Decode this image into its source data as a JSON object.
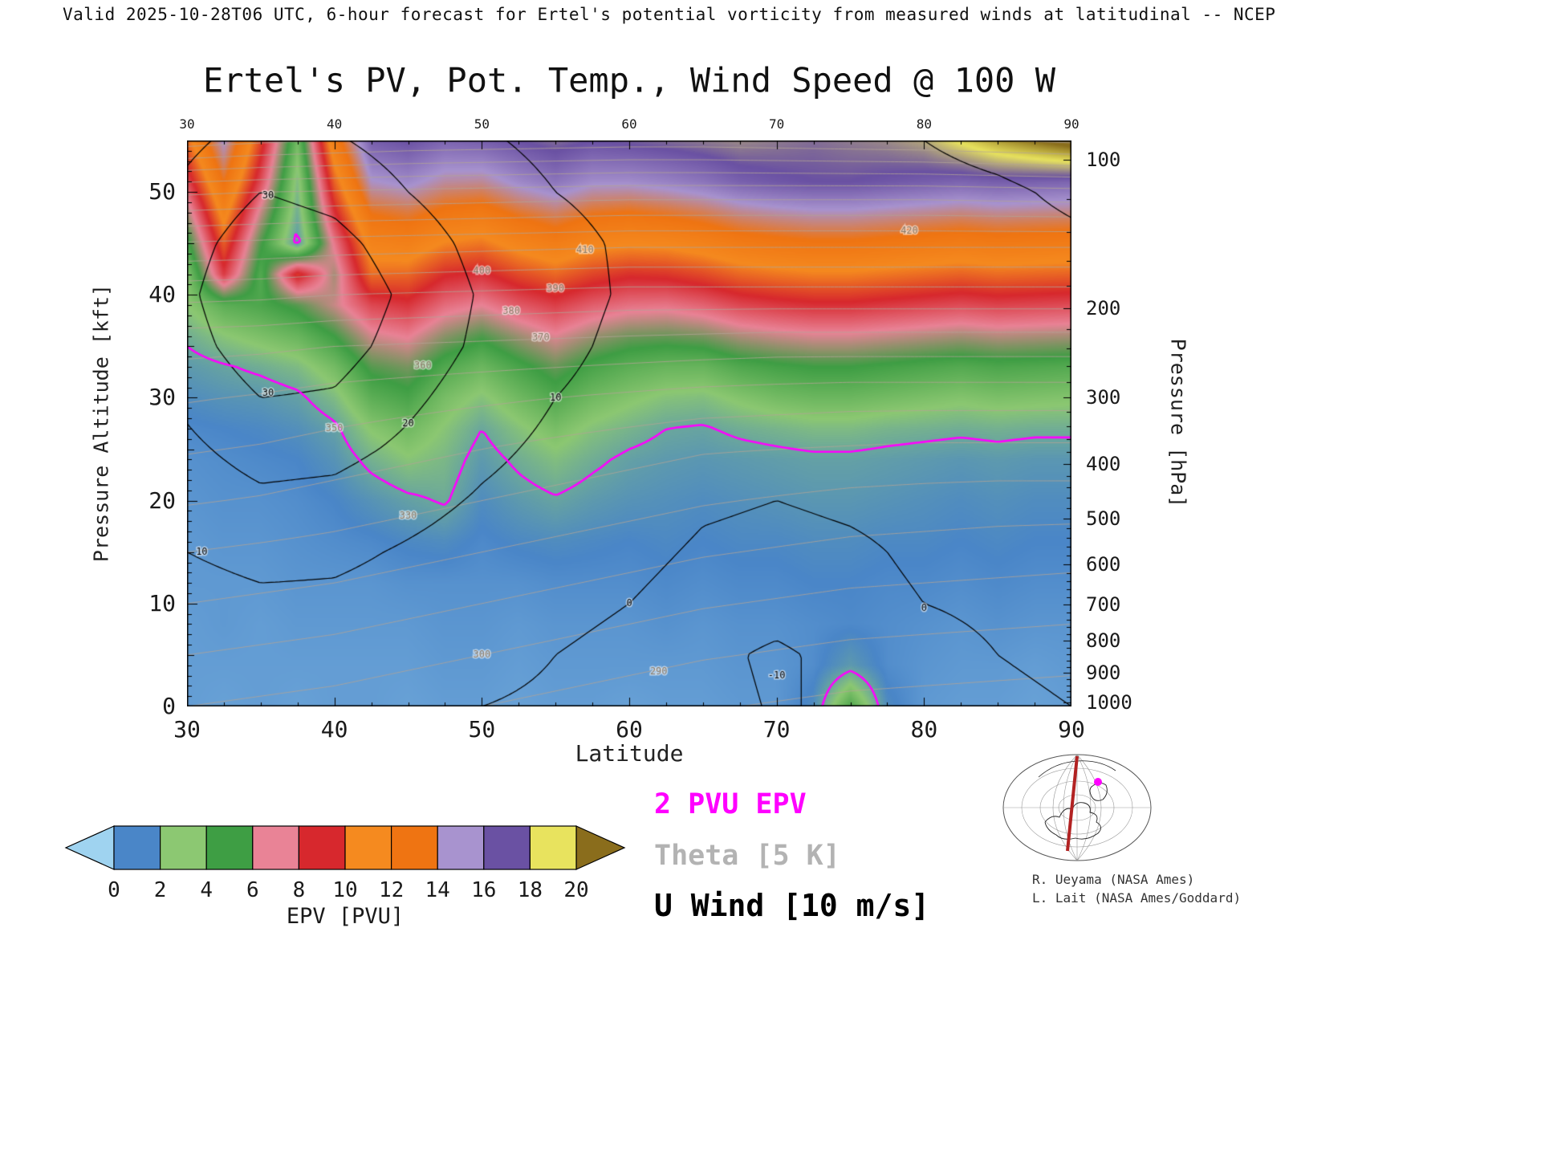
{
  "header": {
    "valid_line": "Valid 2025-10-28T06 UTC, 6-hour forecast for Ertel's potential vorticity from measured winds at latitudinal -- NCEP"
  },
  "title": "Ertel's PV, Pot. Temp., Wind Speed @ 100 W",
  "axes": {
    "x": {
      "label": "Latitude",
      "ticks": [
        30,
        40,
        50,
        60,
        70,
        80,
        90
      ],
      "lim": [
        30,
        90
      ]
    },
    "y_left": {
      "label": "Pressure Altitude [kft]",
      "ticks": [
        0,
        10,
        20,
        30,
        40,
        50
      ],
      "lim": [
        0,
        55
      ]
    },
    "y_right": {
      "label": "Pressure [hPa]",
      "ticks": [
        {
          "p": 100,
          "kft": 53.1
        },
        {
          "p": 200,
          "kft": 38.66
        },
        {
          "p": 300,
          "kft": 30.07
        },
        {
          "p": 400,
          "kft": 23.57
        },
        {
          "p": 500,
          "kft": 18.29
        },
        {
          "p": 600,
          "kft": 13.8
        },
        {
          "p": 700,
          "kft": 9.88
        },
        {
          "p": 800,
          "kft": 6.39
        },
        {
          "p": 900,
          "kft": 3.24
        },
        {
          "p": 1000,
          "kft": 0.36
        }
      ]
    }
  },
  "legend": {
    "pv": {
      "text": "2 PVU EPV",
      "color": "#ff00ff"
    },
    "theta": {
      "text": "Theta [5 K]",
      "color": "#b3b3b3"
    },
    "wind": {
      "text": "U Wind [10 m/s]",
      "color": "#000000"
    }
  },
  "credits": [
    "R. Ueyama (NASA Ames)",
    "L. Lait (NASA Ames/Goddard)"
  ],
  "chart_data": {
    "type": "heatmap",
    "title": "Ertel's PV, Pot. Temp., Wind Speed @ 100 W",
    "xlabel": "Latitude",
    "ylabel_left": "Pressure Altitude [kft]",
    "ylabel_right": "Pressure [hPa]",
    "xlim": [
      30,
      90
    ],
    "ylim": [
      0,
      55
    ],
    "colorbar": {
      "label": "EPV [PVU]",
      "tick_labels": [
        0,
        2,
        4,
        6,
        8,
        10,
        12,
        14,
        16,
        18,
        20
      ],
      "under_color": "#9fd3f0",
      "over_color": "#8a6d1c",
      "segment_colors": [
        "#4a86c8",
        "#8cc872",
        "#3e9e44",
        "#e98396",
        "#d7282d",
        "#f58a1f",
        "#ef7412",
        "#a893cf",
        "#6a51a3",
        "#e8e35e"
      ]
    },
    "colormap": [
      [
        -1,
        "#9fd3f0"
      ],
      [
        1,
        "#4a86c8"
      ],
      [
        3,
        "#8cc872"
      ],
      [
        5,
        "#3e9e44"
      ],
      [
        7,
        "#e98396"
      ],
      [
        9,
        "#d7282d"
      ],
      [
        11,
        "#f58a1f"
      ],
      [
        13,
        "#ef7412"
      ],
      [
        15,
        "#a893cf"
      ],
      [
        17,
        "#6a51a3"
      ],
      [
        19,
        "#e8e35e"
      ],
      [
        21,
        "#8a6d1c"
      ]
    ],
    "pv": {
      "units": "PVU",
      "highlight_level": 2,
      "highlight_color": "#ff00ff",
      "lats": [
        30,
        32.5,
        35,
        37.5,
        40,
        42.5,
        45,
        47.5,
        50,
        52.5,
        55,
        57.5,
        60,
        62.5,
        65,
        67.5,
        70,
        72.5,
        75,
        77.5,
        80,
        82.5,
        85,
        87.5,
        90
      ],
      "alts": [
        0,
        4,
        8,
        12,
        16,
        20,
        24,
        27,
        30,
        33,
        36,
        39,
        42,
        45,
        48,
        51,
        55
      ],
      "values": [
        [
          0.4,
          0.3,
          0.4,
          0.3,
          0.4,
          0.4,
          0.3,
          0.4,
          0.4,
          0.3,
          0.4,
          0.4,
          0.3,
          0.4,
          0.4,
          0.5,
          0.5,
          1.2,
          4.6,
          1.2,
          0.5,
          0.4,
          0.4,
          0.3,
          0.4
        ],
        [
          0.4,
          0.4,
          0.4,
          0.4,
          0.4,
          0.4,
          0.4,
          0.5,
          0.5,
          0.4,
          0.5,
          0.5,
          0.5,
          0.5,
          0.5,
          0.6,
          0.6,
          0.8,
          1.6,
          0.8,
          0.6,
          0.5,
          0.5,
          0.4,
          0.5
        ],
        [
          0.4,
          0.5,
          0.4,
          0.5,
          0.5,
          0.5,
          0.5,
          0.6,
          0.6,
          0.5,
          0.6,
          0.6,
          0.6,
          0.7,
          0.6,
          0.7,
          0.7,
          0.8,
          0.9,
          0.8,
          0.7,
          0.6,
          0.7,
          0.6,
          0.6
        ],
        [
          0.5,
          0.5,
          0.5,
          0.6,
          0.6,
          0.6,
          0.7,
          0.7,
          0.7,
          0.7,
          0.8,
          0.8,
          0.8,
          0.9,
          0.8,
          0.9,
          0.9,
          1.0,
          1.0,
          0.9,
          0.9,
          0.8,
          0.9,
          0.8,
          0.8
        ],
        [
          0.5,
          0.6,
          0.6,
          0.7,
          0.8,
          0.9,
          1.1,
          1.2,
          0.9,
          1.1,
          1.2,
          1.1,
          1.0,
          1.1,
          1.0,
          1.1,
          1.1,
          1.2,
          1.2,
          1.1,
          1.1,
          1.0,
          1.1,
          1.0,
          1.0
        ],
        [
          0.6,
          0.7,
          0.7,
          0.8,
          1.0,
          1.4,
          1.8,
          2.1,
          1.2,
          1.6,
          1.9,
          1.6,
          1.4,
          1.3,
          1.2,
          1.3,
          1.4,
          1.5,
          1.5,
          1.4,
          1.3,
          1.2,
          1.3,
          1.2,
          1.2
        ],
        [
          0.7,
          0.8,
          0.9,
          1.0,
          1.4,
          2.3,
          2.9,
          2.5,
          1.6,
          2.2,
          2.7,
          2.2,
          1.8,
          1.6,
          1.5,
          1.6,
          1.7,
          1.8,
          1.8,
          1.7,
          1.6,
          1.5,
          1.6,
          1.5,
          1.5
        ],
        [
          0.9,
          1.0,
          1.1,
          1.3,
          1.8,
          3.1,
          3.7,
          2.9,
          2.0,
          2.8,
          3.5,
          2.8,
          2.4,
          2.0,
          1.9,
          2.2,
          2.4,
          2.6,
          2.6,
          2.4,
          2.3,
          2.2,
          2.3,
          2.2,
          2.2
        ],
        [
          1.2,
          1.4,
          1.5,
          1.8,
          2.6,
          4.2,
          4.7,
          3.5,
          2.8,
          3.7,
          4.5,
          3.7,
          3.2,
          2.8,
          2.7,
          3.2,
          3.6,
          3.8,
          3.8,
          3.6,
          3.4,
          3.2,
          3.4,
          3.3,
          3.2
        ],
        [
          1.6,
          1.9,
          2.2,
          2.6,
          3.6,
          5.3,
          5.7,
          4.5,
          3.8,
          4.7,
          5.5,
          4.7,
          4.2,
          3.9,
          3.9,
          4.5,
          4.8,
          5.0,
          5.0,
          4.8,
          4.6,
          4.4,
          4.6,
          4.5,
          4.4
        ],
        [
          2.2,
          2.9,
          3.4,
          3.9,
          5.0,
          6.7,
          7.1,
          5.9,
          5.2,
          6.1,
          6.9,
          6.1,
          5.6,
          5.5,
          5.7,
          6.3,
          6.6,
          6.8,
          6.8,
          6.6,
          6.4,
          6.2,
          6.4,
          6.3,
          6.2
        ],
        [
          3.0,
          4.2,
          4.6,
          5.3,
          6.6,
          8.3,
          8.7,
          7.5,
          7.0,
          7.9,
          8.5,
          7.8,
          7.4,
          7.3,
          7.7,
          8.3,
          8.6,
          8.8,
          8.8,
          8.6,
          8.4,
          8.2,
          8.4,
          8.3,
          8.2
        ],
        [
          3.2,
          8.6,
          4.4,
          9.4,
          6.2,
          10.4,
          10.3,
          9.1,
          8.8,
          9.7,
          10.3,
          9.6,
          9.2,
          9.3,
          9.7,
          10.3,
          10.6,
          10.8,
          10.8,
          10.6,
          10.4,
          10.2,
          10.4,
          10.3,
          10.2
        ],
        [
          4.6,
          10.1,
          5.2,
          1.6,
          7.2,
          11.6,
          11.9,
          10.9,
          10.6,
          11.5,
          12.1,
          11.4,
          11.2,
          11.3,
          11.7,
          12.3,
          12.6,
          12.8,
          12.8,
          12.6,
          12.4,
          12.2,
          12.4,
          12.3,
          12.2
        ],
        [
          6.2,
          11.6,
          6.6,
          2.2,
          8.8,
          13.1,
          13.5,
          12.7,
          12.4,
          13.3,
          13.9,
          13.2,
          13.0,
          13.3,
          13.7,
          14.3,
          14.6,
          14.8,
          14.8,
          14.6,
          14.4,
          14.2,
          14.4,
          14.3,
          14.2
        ],
        [
          8.2,
          13.1,
          8.2,
          2.6,
          10.2,
          14.9,
          15.3,
          14.5,
          14.4,
          15.3,
          15.9,
          15.2,
          15.2,
          15.5,
          15.9,
          16.5,
          16.8,
          17.0,
          17.0,
          16.8,
          16.6,
          16.4,
          16.6,
          16.5,
          16.4
        ],
        [
          10.4,
          15.1,
          9.6,
          3.6,
          12.2,
          16.6,
          17.0,
          16.4,
          16.6,
          17.0,
          17.4,
          17.0,
          17.2,
          17.4,
          17.6,
          17.8,
          17.6,
          17.4,
          17.6,
          17.8,
          18.2,
          19.2,
          20.2,
          21.0,
          21.8
        ]
      ]
    },
    "theta": {
      "units": "K",
      "contour_interval": 10,
      "levels": [
        280,
        290,
        300,
        310,
        320,
        330,
        340,
        350,
        360,
        370,
        380,
        390,
        400,
        410,
        420,
        430,
        440,
        450,
        460,
        470,
        480,
        490
      ],
      "color": "#b3a396",
      "lats": [
        30,
        35,
        40,
        45,
        50,
        55,
        60,
        65,
        70,
        75,
        80,
        85,
        90
      ],
      "alts": [
        0,
        5,
        10,
        15,
        20,
        25,
        30,
        35,
        40,
        45,
        50,
        55
      ],
      "values": [
        [
          300,
          298,
          296,
          293,
          290,
          287,
          284,
          281,
          279,
          277,
          276,
          275,
          274
        ],
        [
          310,
          308,
          306,
          303,
          300,
          297,
          294,
          291,
          289,
          287,
          286,
          285,
          284
        ],
        [
          320,
          318,
          316,
          313,
          310,
          307,
          304,
          301,
          299,
          297,
          296,
          295,
          294
        ],
        [
          330,
          328,
          326,
          323,
          320,
          317,
          314,
          311,
          309,
          307,
          306,
          305,
          304
        ],
        [
          341,
          339,
          336,
          333,
          330,
          327,
          324,
          321,
          319,
          317,
          316,
          315,
          315
        ],
        [
          351,
          349,
          346,
          343,
          340,
          337,
          334,
          331,
          330,
          329,
          328,
          328,
          328
        ],
        [
          361,
          359,
          356,
          354,
          352,
          350,
          348,
          346,
          345,
          344,
          344,
          344,
          344
        ],
        [
          373,
          372,
          370,
          369,
          368,
          367,
          366,
          365,
          364,
          364,
          364,
          364,
          364
        ],
        [
          393,
          392,
          390,
          389,
          388,
          387,
          386,
          386,
          386,
          386,
          386,
          386,
          386
        ],
        [
          419,
          418,
          416,
          415,
          414,
          413,
          412,
          412,
          412,
          412,
          412,
          412,
          412
        ],
        [
          452,
          450,
          449,
          448,
          447,
          446,
          445,
          445,
          445,
          445,
          445,
          446,
          447
        ],
        [
          495,
          492,
          490,
          488,
          487,
          486,
          485,
          485,
          486,
          487,
          488,
          490,
          492
        ]
      ]
    },
    "u_wind": {
      "units": "m/s",
      "contour_interval": 10,
      "levels": [
        -10,
        0,
        10,
        20,
        30,
        40
      ],
      "color": "#000000",
      "lats": [
        30,
        35,
        40,
        45,
        50,
        55,
        60,
        65,
        70,
        75,
        80,
        85,
        90
      ],
      "alts": [
        0,
        5,
        10,
        15,
        20,
        25,
        30,
        35,
        40,
        45,
        50,
        55
      ],
      "values": [
        [
          2,
          3,
          2,
          1,
          0,
          -1,
          -3,
          -6,
          -11,
          -8,
          -3,
          -1,
          0
        ],
        [
          4,
          5,
          4,
          3,
          2,
          0,
          -2,
          -7,
          -12,
          -6,
          -2,
          0,
          1
        ],
        [
          6,
          8,
          8,
          6,
          4,
          2,
          0,
          -3,
          -5,
          -2,
          0,
          1,
          2
        ],
        [
          10,
          13,
          12,
          9,
          6,
          4,
          2,
          -1,
          -2,
          -1,
          1,
          2,
          3
        ],
        [
          14,
          18,
          17,
          13,
          9,
          6,
          4,
          1,
          0,
          1,
          2,
          3,
          4
        ],
        [
          18,
          24,
          23,
          18,
          12,
          8,
          5,
          2,
          1,
          2,
          3,
          4,
          5
        ],
        [
          22,
          30,
          29,
          22,
          15,
          10,
          7,
          4,
          2,
          3,
          4,
          5,
          6
        ],
        [
          26,
          36,
          34,
          26,
          18,
          12,
          8,
          5,
          3,
          4,
          5,
          6,
          7
        ],
        [
          28,
          40,
          37,
          28,
          19,
          13,
          9,
          6,
          4,
          5,
          6,
          7,
          8
        ],
        [
          26,
          36,
          33,
          25,
          17,
          12,
          9,
          6,
          5,
          6,
          7,
          8,
          9
        ],
        [
          22,
          30,
          27,
          20,
          14,
          10,
          8,
          6,
          6,
          7,
          8,
          9,
          11
        ],
        [
          18,
          24,
          21,
          16,
          11,
          8,
          7,
          6,
          7,
          8,
          10,
          12,
          14
        ]
      ]
    },
    "contour_labels": [
      {
        "text": "290",
        "lat": 62,
        "alt": 3.4,
        "kind": "theta"
      },
      {
        "text": "300",
        "lat": 50,
        "alt": 5.0,
        "kind": "theta"
      },
      {
        "text": "330",
        "lat": 45,
        "alt": 18.5,
        "kind": "theta"
      },
      {
        "text": "350",
        "lat": 40,
        "alt": 27.0,
        "kind": "theta"
      },
      {
        "text": "360",
        "lat": 46,
        "alt": 33.1,
        "kind": "theta"
      },
      {
        "text": "370",
        "lat": 54,
        "alt": 35.8,
        "kind": "theta"
      },
      {
        "text": "380",
        "lat": 52,
        "alt": 38.4,
        "kind": "theta"
      },
      {
        "text": "390",
        "lat": 55,
        "alt": 40.6,
        "kind": "theta"
      },
      {
        "text": "400",
        "lat": 50,
        "alt": 42.3,
        "kind": "theta"
      },
      {
        "text": "410",
        "lat": 57,
        "alt": 44.3,
        "kind": "theta"
      },
      {
        "text": "420",
        "lat": 79,
        "alt": 46.2,
        "kind": "theta"
      },
      {
        "text": "30",
        "lat": 35.5,
        "alt": 30.4,
        "kind": "wind"
      },
      {
        "text": "30",
        "lat": 35.5,
        "alt": 49.6,
        "kind": "wind"
      },
      {
        "text": "20",
        "lat": 45,
        "alt": 27.5,
        "kind": "wind"
      },
      {
        "text": "10",
        "lat": 31,
        "alt": 15,
        "kind": "wind"
      },
      {
        "text": "10",
        "lat": 55,
        "alt": 30,
        "kind": "wind"
      },
      {
        "text": "0",
        "lat": 60,
        "alt": 10,
        "kind": "wind"
      },
      {
        "text": "0",
        "lat": 80,
        "alt": 9.5,
        "kind": "wind"
      },
      {
        "text": "-10",
        "lat": 70,
        "alt": 3,
        "kind": "wind"
      }
    ]
  }
}
